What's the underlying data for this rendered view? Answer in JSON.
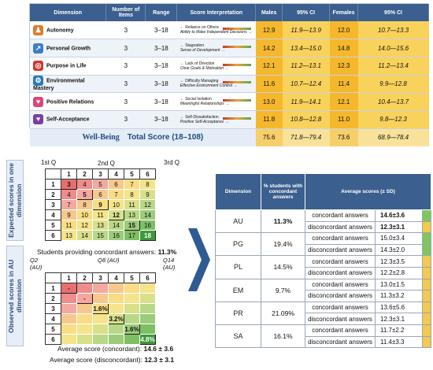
{
  "top_table": {
    "headers": [
      "Dimension",
      "Number of Items",
      "Range",
      "Score Interpretation",
      "Males",
      "95% CI",
      "Females",
      "95% CI"
    ],
    "rows": [
      {
        "dim": "Autonomy",
        "items": "3",
        "range": "3–18",
        "low": "← Reliance on Others",
        "high": "Ability to Make Independent Decisions →",
        "m": "12.9",
        "mci": "11.9—13.9",
        "f": "12.0",
        "fci": "10.7—13.3",
        "icon": "person-running-icon",
        "color": "#e07b2a"
      },
      {
        "dim": "Personal Growth",
        "items": "3",
        "range": "3–18",
        "low": "← Stagnation",
        "high": "Sense of Development →",
        "m": "14.2",
        "mci": "13.4—15.0",
        "f": "14.8",
        "fci": "14.0—15.6",
        "icon": "growth-chart-icon",
        "color": "#3a7fc4"
      },
      {
        "dim": "Purpose in Life",
        "items": "3",
        "range": "3–18",
        "low": "← Lack of Direction",
        "high": "Clear Goals & Motivation →",
        "m": "12.1",
        "mci": "11.2—13.1",
        "f": "12.3",
        "fci": "11.2—13.4",
        "icon": "target-icon",
        "color": "#d0382e"
      },
      {
        "dim": "Environmental Mastery",
        "items": "3",
        "range": "3–18",
        "low": "← Difficulty Managing",
        "high": "Effective Environment Control →",
        "m": "11.6",
        "mci": "10.7—12.4",
        "f": "11.4",
        "fci": "9.9—12.8",
        "icon": "gear-icon",
        "color": "#2b7bb9"
      },
      {
        "dim": "Positive Relations",
        "items": "3",
        "range": "3–18",
        "low": "← Social Isolation",
        "high": "Meaningful Relationships →",
        "m": "13.0",
        "mci": "11.9—14.1",
        "f": "12.1",
        "fci": "10.4—13.7",
        "icon": "people-icon",
        "color": "#d9477a"
      },
      {
        "dim": "Self-Acceptance",
        "items": "3",
        "range": "3–18",
        "low": "← Self-Dissatisfaction",
        "high": "Positive Self-Acceptance →",
        "m": "11.8",
        "mci": "10.8—12.8",
        "f": "11.0",
        "fci": "9.8—12.3",
        "icon": "heart-icon",
        "color": "#7a3ea0"
      }
    ],
    "total": {
      "label1": "Well-Being",
      "label2": "Total Score (18–108)",
      "m": "75.6",
      "mci": "71.8—79.4",
      "f": "73.6",
      "fci": "68.9—78.4"
    }
  },
  "left": {
    "label_top": "Expected scores in one dimension",
    "label_bottom": "Observed scores in AU dimension",
    "grid1": {
      "col_title": "2nd Q",
      "row_title": "1st Q",
      "third": "3rd Q",
      "cols": [
        "1",
        "2",
        "3",
        "4",
        "5",
        "6"
      ],
      "rows": [
        [
          "1",
          "3",
          "4",
          "5",
          "6",
          "7",
          "8"
        ],
        [
          "2",
          "4",
          "5",
          "6",
          "7",
          "8",
          "9"
        ],
        [
          "3",
          "7",
          "8",
          "9",
          "10",
          "11",
          "12"
        ],
        [
          "4",
          "9",
          "10",
          "11",
          "12",
          "13",
          "14"
        ],
        [
          "5",
          "11",
          "12",
          "13",
          "14",
          "15",
          "16"
        ],
        [
          "6",
          "13",
          "14",
          "15",
          "16",
          "17",
          "18"
        ]
      ]
    },
    "concordant_text": "Students providing concordant answers:",
    "concordant_pct": "11.3%",
    "grid2": {
      "col_title": "Q8 (AU)",
      "row_title": "Q2 (AU)",
      "third": "Q14 (AU)",
      "cols": [
        "1",
        "2",
        "3",
        "4",
        "5",
        "6"
      ],
      "rows": [
        [
          "1",
          "-",
          "",
          "",
          "",
          "",
          ""
        ],
        [
          "2",
          "",
          "-",
          "",
          "",
          "",
          ""
        ],
        [
          "3",
          "",
          "",
          "1.6%",
          "",
          "",
          ""
        ],
        [
          "4",
          "",
          "",
          "",
          "3.2%",
          "",
          ""
        ],
        [
          "5",
          "",
          "",
          "",
          "",
          "1.6%",
          ""
        ],
        [
          "6",
          "",
          "",
          "",
          "",
          "",
          "4.8%"
        ]
      ]
    },
    "avg_con_label": "Average score (concordant):",
    "avg_con": "14.6 ± 3.6",
    "avg_dis_label": "Average score (disconcordant):",
    "avg_dis": "12.3 ± 3.1"
  },
  "right_table": {
    "headers": [
      "Dimension",
      "% students with concordant answers",
      "Average scores (± SD)"
    ],
    "rows": [
      {
        "dim": "AU",
        "pct": "11.3%",
        "c": "14.6±3.6",
        "d": "12.3±3.1",
        "bold": true,
        "cc": "#7fc75b",
        "dc": "#f3c94e"
      },
      {
        "dim": "PG",
        "pct": "19.4%",
        "c": "15.0±3.4",
        "d": "14.3±2.0",
        "bold": false,
        "cc": "#7fc75b",
        "dc": "#7fc75b"
      },
      {
        "dim": "PL",
        "pct": "14.5%",
        "c": "12.3±3.5",
        "d": "12.2±2.8",
        "bold": false,
        "cc": "#f3c94e",
        "dc": "#f3c94e"
      },
      {
        "dim": "EM",
        "pct": "9.7%",
        "c": "13.0±1.5",
        "d": "11.3±3.2",
        "bold": false,
        "cc": "#f3c94e",
        "dc": "#f3c94e"
      },
      {
        "dim": "PR",
        "pct": "21.09%",
        "c": "13.6±5.6",
        "d": "12.3±3.1",
        "bold": false,
        "cc": "#f3c94e",
        "dc": "#f3c94e"
      },
      {
        "dim": "SA",
        "pct": "16.1%",
        "c": "11.7±2.2",
        "d": "11.4±3.3",
        "bold": false,
        "cc": "#f3c94e",
        "dc": "#f3c94e"
      }
    ],
    "con_label": "concordant answers",
    "dis_label": "disconcordant answers"
  }
}
